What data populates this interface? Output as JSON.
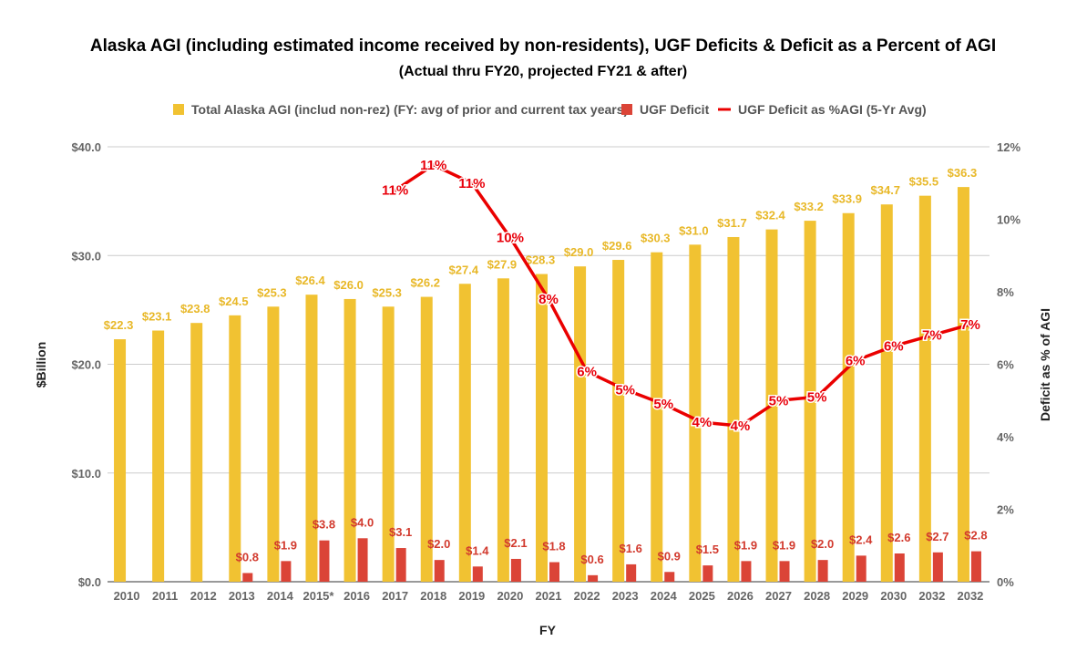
{
  "chart_data": {
    "type": "bar",
    "title": "Alaska AGI (including estimated income received by non-residents), UGF Deficits & Deficit as a Percent of AGI",
    "subtitle": "(Actual thru FY20, projected FY21 & after)",
    "xlabel": "FY",
    "ylabel": "$Billion",
    "y2label": "Deficit as % of AGI",
    "ylim": [
      0,
      40
    ],
    "y2lim": [
      0,
      12
    ],
    "yticks": [
      "$0.0",
      "$10.0",
      "$20.0",
      "$30.0",
      "$40.0"
    ],
    "y2ticks": [
      "0%",
      "2%",
      "4%",
      "6%",
      "8%",
      "10%",
      "12%"
    ],
    "grid": true,
    "legend_position": "top",
    "categories": [
      "2010",
      "2011",
      "2012",
      "2013",
      "2014",
      "2015*",
      "2016",
      "2017",
      "2018",
      "2019",
      "2020",
      "2021",
      "2022",
      "2023",
      "2024",
      "2025",
      "2026",
      "2027",
      "2028",
      "2029",
      "2030",
      "2032",
      "2032"
    ],
    "series": [
      {
        "name": "Total Alaska AGI (includ non-rez) (FY: avg of prior and current tax years)",
        "type": "bar",
        "color": "#f1c232",
        "values": [
          22.3,
          23.1,
          23.8,
          24.5,
          25.3,
          26.4,
          26.0,
          25.3,
          26.2,
          27.4,
          27.9,
          28.3,
          29.0,
          29.6,
          30.3,
          31.0,
          31.7,
          32.4,
          33.2,
          33.9,
          34.7,
          35.5,
          36.3
        ],
        "labels": [
          "$22.3",
          "$23.1",
          "$23.8",
          "$24.5",
          "$25.3",
          "$26.4",
          "$26.0",
          "$25.3",
          "$26.2",
          "$27.4",
          "$27.9",
          "$28.3",
          "$29.0",
          "$29.6",
          "$30.3",
          "$31.0",
          "$31.7",
          "$32.4",
          "$33.2",
          "$33.9",
          "$34.7",
          "$35.5",
          "$36.3"
        ]
      },
      {
        "name": "UGF Deficit",
        "type": "bar",
        "color": "#db4437",
        "values": [
          null,
          null,
          null,
          0.8,
          1.9,
          3.8,
          4.0,
          3.1,
          2.0,
          1.4,
          2.1,
          1.8,
          0.6,
          1.6,
          0.9,
          1.5,
          1.9,
          1.9,
          2.0,
          2.4,
          2.6,
          2.7,
          2.8
        ],
        "labels": [
          null,
          null,
          null,
          "$0.8",
          "$1.9",
          "$3.8",
          "$4.0",
          "$3.1",
          "$2.0",
          "$1.4",
          "$2.1",
          "$1.8",
          "$0.6",
          "$1.6",
          "$0.9",
          "$1.5",
          "$1.9",
          "$1.9",
          "$2.0",
          "$2.4",
          "$2.6",
          "$2.7",
          "$2.8"
        ]
      },
      {
        "name": "UGF Deficit as %AGI (5-Yr Avg)",
        "type": "line",
        "axis": "right",
        "color": "#ea0000",
        "values": [
          null,
          null,
          null,
          null,
          null,
          null,
          null,
          10.8,
          11.5,
          11.0,
          9.5,
          7.8,
          5.8,
          5.3,
          4.9,
          4.4,
          4.3,
          5.0,
          5.1,
          6.1,
          6.5,
          6.8,
          7.1
        ],
        "labels": [
          null,
          null,
          null,
          null,
          null,
          null,
          null,
          "11%",
          "11%",
          "11%",
          "10%",
          "8%",
          "6%",
          "5%",
          "5%",
          "4%",
          "4%",
          "5%",
          "5%",
          "6%",
          "6%",
          "7%",
          "7%"
        ]
      }
    ]
  }
}
